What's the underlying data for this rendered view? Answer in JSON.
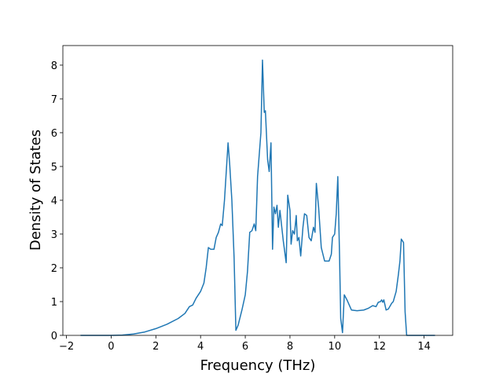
{
  "chart_data": {
    "type": "line",
    "xlabel": "Frequency (THz)",
    "ylabel": "Density of States",
    "series": [
      {
        "color": "#1f77b4",
        "x": [
          -1.37,
          0,
          0.5,
          1,
          1.5,
          2,
          2.5,
          3,
          3.3,
          3.5,
          3.65,
          3.8,
          4.0,
          4.15,
          4.25,
          4.35,
          4.45,
          4.6,
          4.7,
          4.8,
          4.9,
          4.97,
          5.07,
          5.23,
          5.3,
          5.4,
          5.5,
          5.58,
          5.68,
          5.85,
          6.0,
          6.1,
          6.2,
          6.3,
          6.4,
          6.47,
          6.55,
          6.7,
          6.77,
          6.85,
          6.9,
          7.0,
          7.07,
          7.15,
          7.22,
          7.28,
          7.35,
          7.42,
          7.48,
          7.55,
          7.7,
          7.83,
          7.9,
          8.0,
          8.05,
          8.12,
          8.2,
          8.28,
          8.33,
          8.4,
          8.48,
          8.58,
          8.65,
          8.75,
          8.85,
          8.95,
          9.05,
          9.12,
          9.18,
          9.28,
          9.4,
          9.55,
          9.75,
          9.85,
          9.9,
          10.0,
          10.07,
          10.14,
          10.22,
          10.27,
          10.35,
          10.43,
          10.55,
          10.75,
          11.0,
          11.3,
          11.5,
          11.7,
          11.85,
          11.95,
          12.05,
          12.1,
          12.15,
          12.2,
          12.3,
          12.4,
          12.55,
          12.62,
          12.75,
          12.85,
          12.92,
          12.98,
          13.08,
          13.15,
          13.22,
          14.49
        ],
        "values": [
          0,
          0,
          0.01,
          0.04,
          0.1,
          0.2,
          0.33,
          0.5,
          0.65,
          0.85,
          0.9,
          1.1,
          1.3,
          1.55,
          2.0,
          2.6,
          2.55,
          2.55,
          2.9,
          3.05,
          3.3,
          3.25,
          4.0,
          5.7,
          5.1,
          4.0,
          2.3,
          0.15,
          0.3,
          0.75,
          1.2,
          1.9,
          3.05,
          3.1,
          3.3,
          3.1,
          4.7,
          6.0,
          8.15,
          6.6,
          6.65,
          5.2,
          4.85,
          5.7,
          2.55,
          3.8,
          3.6,
          3.85,
          3.2,
          3.7,
          2.8,
          2.15,
          4.15,
          3.7,
          2.7,
          3.1,
          3.0,
          3.55,
          2.8,
          2.9,
          2.35,
          3.2,
          3.6,
          3.55,
          2.9,
          2.8,
          3.2,
          3.05,
          4.5,
          3.8,
          2.6,
          2.2,
          2.2,
          2.4,
          2.9,
          3.0,
          3.6,
          4.7,
          2.3,
          0.5,
          0.08,
          1.2,
          1.05,
          0.75,
          0.73,
          0.75,
          0.8,
          0.88,
          0.85,
          0.98,
          1.0,
          1.05,
          0.98,
          1.05,
          0.75,
          0.78,
          0.95,
          1.0,
          1.3,
          1.8,
          2.2,
          2.85,
          2.75,
          0.7,
          0,
          0
        ]
      }
    ],
    "xlim": [
      -2.16,
      15.28
    ],
    "xticks": [
      {
        "value": -2,
        "label": "−2"
      },
      0,
      2,
      4,
      6,
      8,
      10,
      12,
      14
    ],
    "ylim": [
      0,
      8.58
    ],
    "yticks": [
      0,
      1,
      2,
      3,
      4,
      5,
      6,
      7,
      8
    ]
  }
}
